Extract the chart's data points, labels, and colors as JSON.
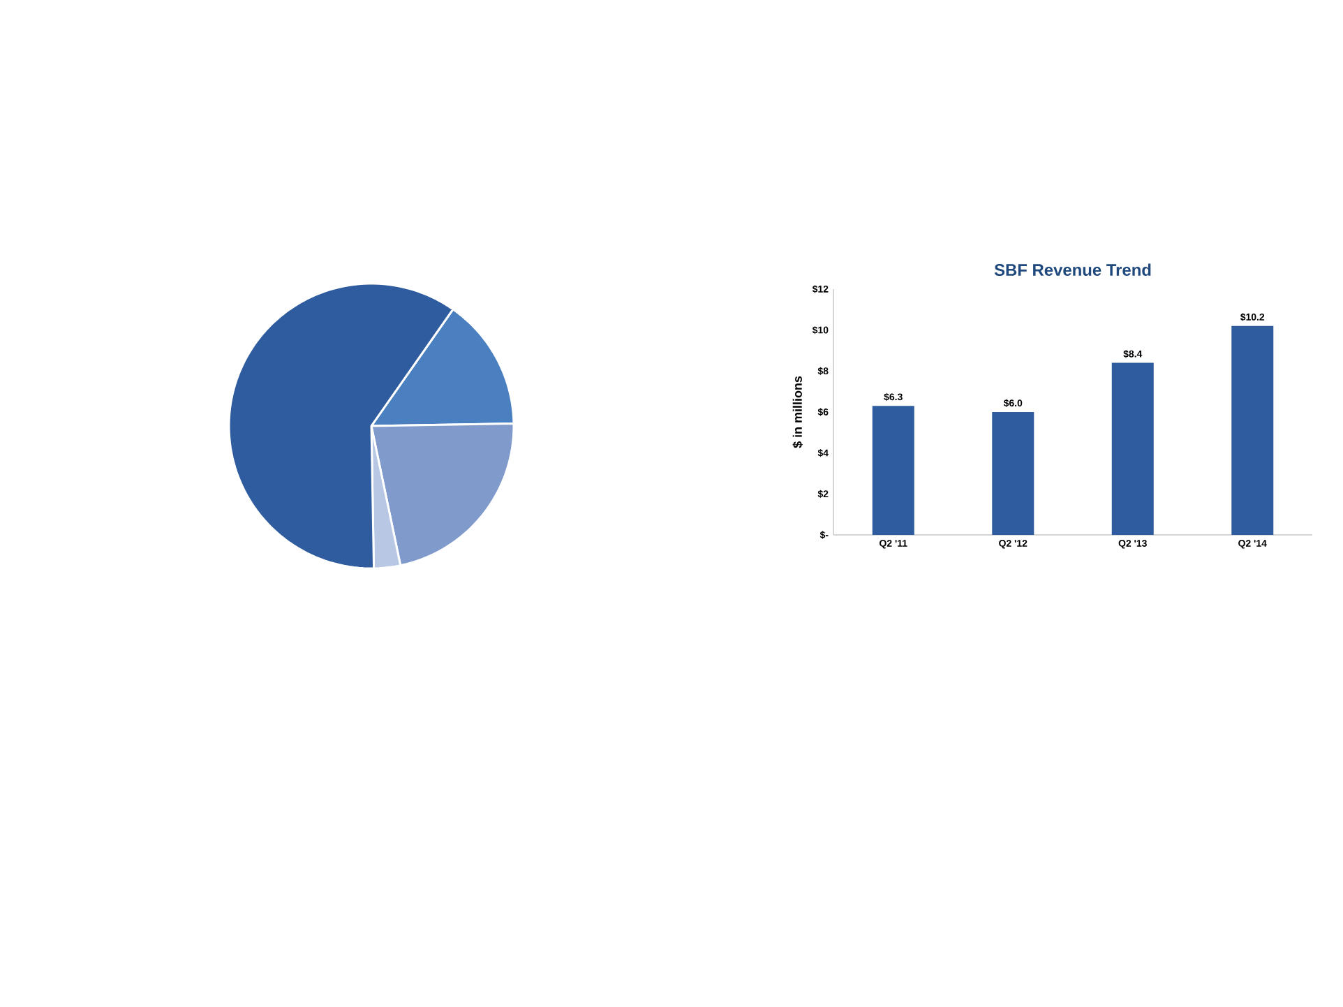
{
  "chart_data": [
    {
      "type": "pie",
      "categories": [
        null,
        null,
        null,
        null
      ],
      "values": [
        15,
        22,
        3,
        60
      ],
      "colors": [
        "#4a7fc0",
        "#7f9acb",
        "#b8c8e4",
        "#2e5c9e"
      ]
    },
    {
      "type": "bar",
      "title": "SBF Revenue Trend",
      "ylabel": "$ in millions",
      "categories": [
        "Q2 '11",
        "Q2 '12",
        "Q2 '13",
        "Q2 '14"
      ],
      "values": [
        6.3,
        6.0,
        8.4,
        10.2
      ],
      "value_labels": [
        "$6.3",
        "$6.0",
        "$8.4",
        "$10.2"
      ],
      "color": "#2e5c9e",
      "ylim": [
        0,
        12
      ],
      "yticks": [
        {
          "value": 0,
          "label": "$-"
        },
        {
          "value": 2,
          "label": "$2"
        },
        {
          "value": 4,
          "label": "$4"
        },
        {
          "value": 6,
          "label": "$6"
        },
        {
          "value": 8,
          "label": "$8"
        },
        {
          "value": 10,
          "label": "$10"
        },
        {
          "value": 12,
          "label": "$12"
        }
      ]
    }
  ]
}
